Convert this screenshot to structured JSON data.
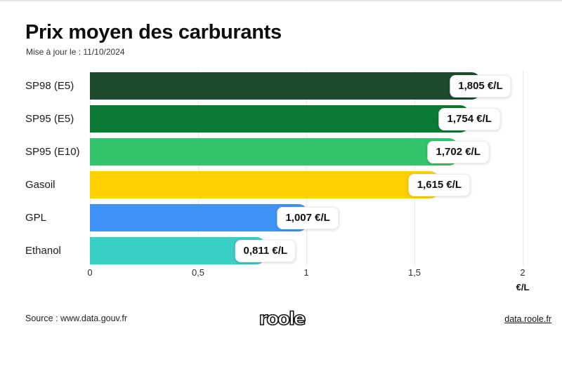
{
  "header": {
    "title": "Prix moyen des carburants",
    "subtitle": "Mise à jour le : 11/10/2024"
  },
  "footer": {
    "source": "Source : www.data.gouv.fr",
    "logo_text": "roole",
    "link": "data.roole.fr"
  },
  "chart_data": {
    "type": "bar",
    "orientation": "horizontal",
    "title": "Prix moyen des carburants",
    "categories": [
      "SP98 (E5)",
      "SP95 (E5)",
      "SP95 (E10)",
      "Gasoil",
      "GPL",
      "Ethanol"
    ],
    "values": [
      1.805,
      1.754,
      1.702,
      1.615,
      1.007,
      0.811
    ],
    "value_labels": [
      "1,805 €/L",
      "1,754 €/L",
      "1,702 €/L",
      "1,615 €/L",
      "1,007 €/L",
      "0,811 €/L"
    ],
    "bar_colors": [
      "#1E4B2E",
      "#0B7A35",
      "#34C46B",
      "#FFD100",
      "#4093F6",
      "#39CEC6"
    ],
    "x_ticks": [
      "0",
      "0,5",
      "1",
      "1,5",
      "2"
    ],
    "x_tick_values": [
      0,
      0.5,
      1,
      1.5,
      2
    ],
    "xlim": [
      0,
      2
    ],
    "xlabel_unit": "€/L",
    "grid": true,
    "legend": false
  }
}
